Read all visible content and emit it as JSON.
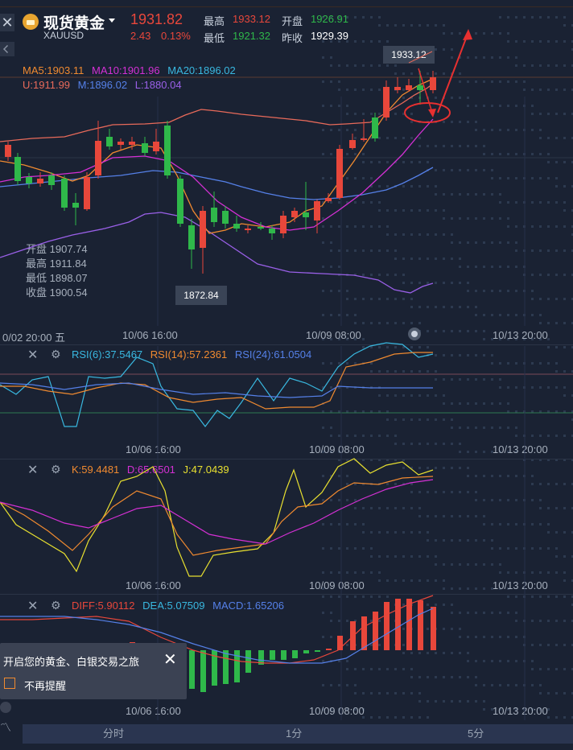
{
  "header": {
    "name": "现货黄金",
    "symbol": "XAUUSD",
    "price": "1931.82",
    "change": "2.43",
    "change_pct": "0.13%",
    "high_label": "最高",
    "high": "1933.12",
    "low_label": "最低",
    "low": "1921.32",
    "open_label": "开盘",
    "open": "1926.91",
    "prev_label": "昨收",
    "prev": "1929.39"
  },
  "main": {
    "ma5": "MA5:1903.11",
    "ma10": "MA10:1901.96",
    "ma20": "MA20:1896.02",
    "boll_u": "U:1911.99",
    "boll_m": "M:1896.02",
    "boll_l": "L:1880.04",
    "ohlc": {
      "open_label": "开盘",
      "open": "1907.74",
      "high_label": "最高",
      "high": "1911.84",
      "low_label": "最低",
      "low": "1898.07",
      "close_label": "收盘",
      "close": "1900.54"
    },
    "max_tag": "1933.12",
    "min_tag": "1872.84",
    "time_labels": [
      "0/02 20:00 五",
      "10/06 16:00",
      "10/09 08:00",
      "10/13 20:00"
    ]
  },
  "rsi": {
    "rsi6": "RSI(6):37.5467",
    "rsi14": "RSI(14):57.2361",
    "rsi24": "RSI(24):61.0504",
    "time_labels": [
      "10/06 16:00",
      "10/09 08:00",
      "10/13 20:00"
    ]
  },
  "kdj": {
    "k": "K:59.4481",
    "d": "D:65.6501",
    "j": "J:47.0439",
    "time_labels": [
      "10/06 16:00",
      "10/09 08:00",
      "10/13 20:00"
    ]
  },
  "macd": {
    "diff": "DIFF:5.90112",
    "dea": "DEA:5.07509",
    "macd": "MACD:1.65206",
    "time_labels": [
      "10/06 16:00",
      "10/09 08:00",
      "10/13 20:00"
    ]
  },
  "dialog": {
    "title": "开启您的黄金、白银交易之旅",
    "checkbox_label": "不再提醒"
  },
  "tabs": [
    "分时",
    "1分",
    "5分"
  ],
  "colors": {
    "up": "#e8473b",
    "down": "#2fb84a",
    "ma5": "#f08a30",
    "ma10": "#d430d4",
    "ma20": "#39b8e0",
    "boll_u": "#e86a5a",
    "boll_m": "#5580e8",
    "boll_l": "#9a60e8",
    "yellow": "#e8e030"
  }
}
